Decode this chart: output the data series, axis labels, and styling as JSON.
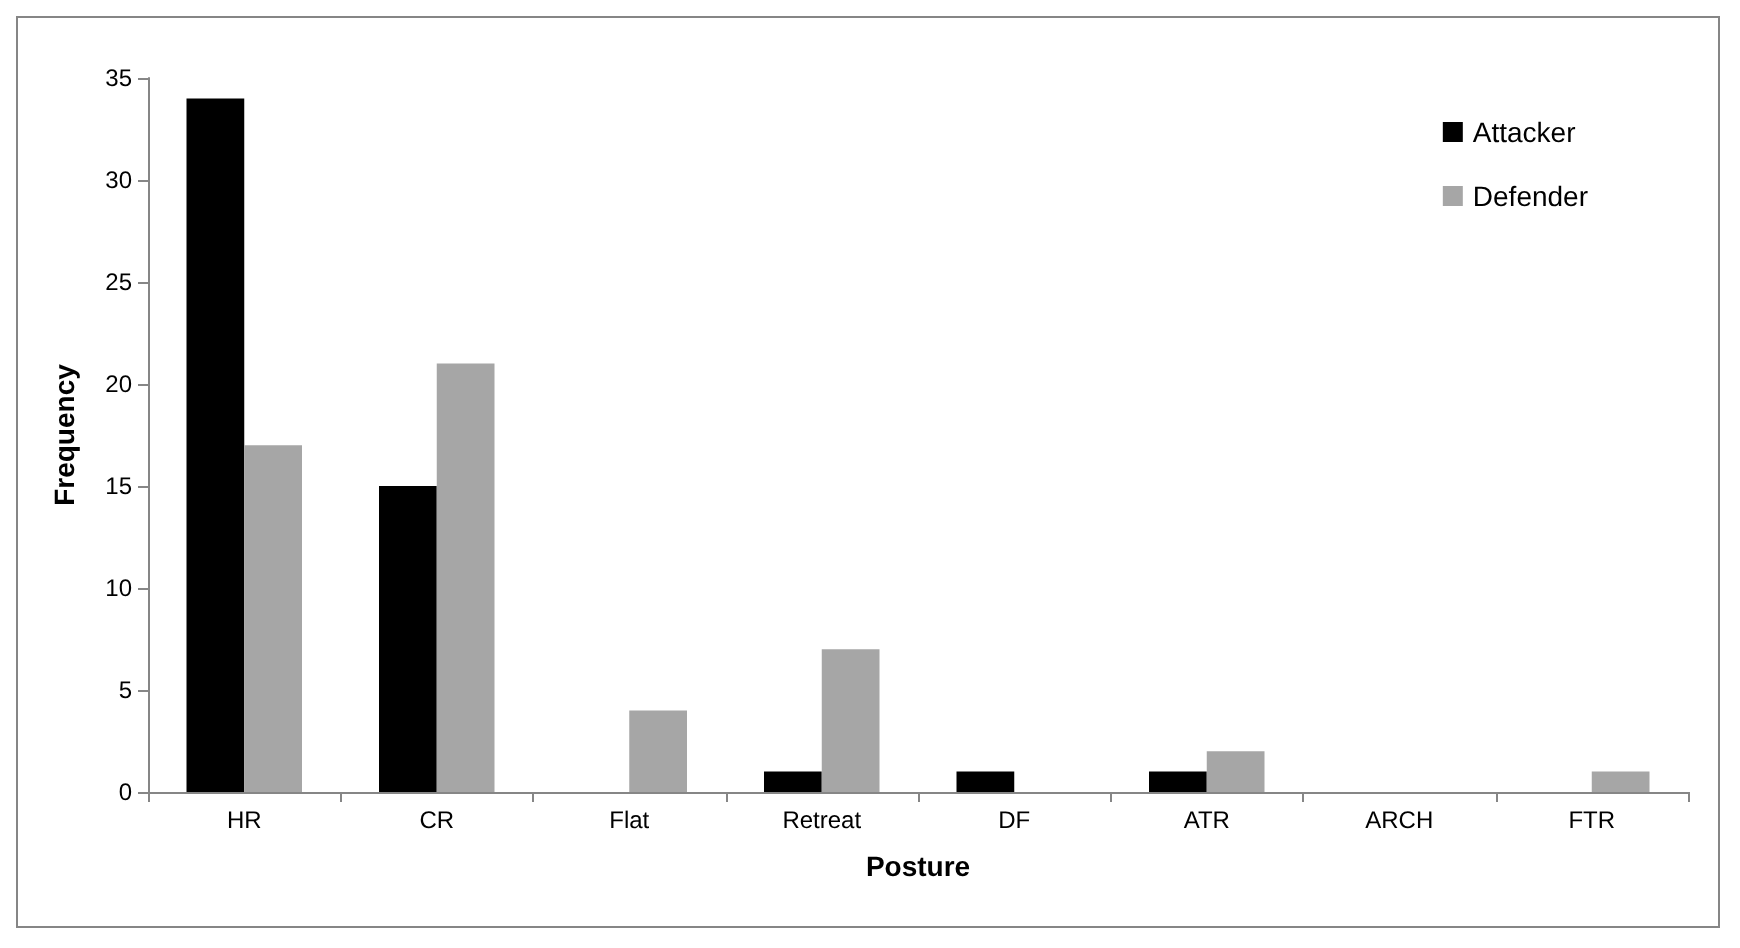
{
  "chart_data": {
    "type": "bar",
    "xlabel": "Posture",
    "ylabel": "Frequency",
    "categories": [
      "HR",
      "CR",
      "Flat",
      "Retreat",
      "DF",
      "ATR",
      "ARCH",
      "FTR"
    ],
    "series": [
      {
        "name": "Attacker",
        "color": "#000000",
        "values": [
          34,
          15,
          0,
          1,
          1,
          1,
          0,
          0
        ]
      },
      {
        "name": "Defender",
        "color": "#a6a6a6",
        "values": [
          17,
          21,
          4,
          7,
          0,
          2,
          0,
          1
        ]
      }
    ],
    "ylim": [
      0,
      35
    ],
    "yticks": [
      0,
      5,
      10,
      15,
      20,
      25,
      30,
      35
    ],
    "grid": false,
    "legend": "top right"
  }
}
